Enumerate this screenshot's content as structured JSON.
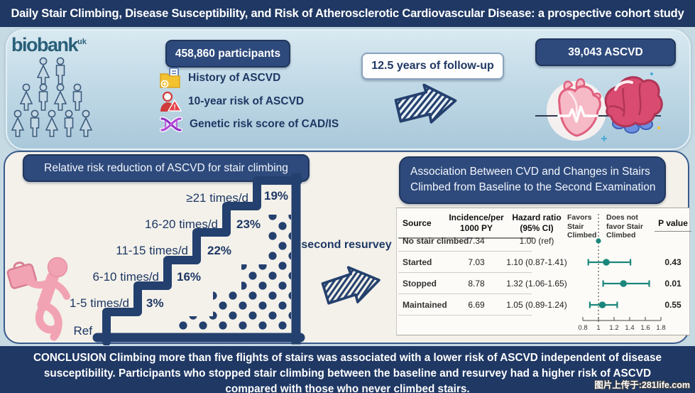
{
  "page_title": "Daily Stair Climbing, Disease Susceptibility, and Risk of Atherosclerotic Cardiovascular Disease: a prospective cohort study",
  "colors": {
    "navy": "#1F3864",
    "badge_navy": "#2E4A7C",
    "stair_navy": "#24406E",
    "panel_cream": "#F3F1EA",
    "teal": "#1B867B",
    "pink": "#F2A6B4",
    "heart_pink": "#F6B9C6",
    "brain_red": "#D94B70",
    "accent_blue": "#6C8FE0",
    "folder_yellow": "#F2C231",
    "dna_purple": "#9233C4",
    "alert_red": "#D9414B"
  },
  "top": {
    "logo_text": "biobank",
    "logo_sup": "uk",
    "participants_badge": "458,860 participants",
    "risk_items": [
      "History of ASCVD",
      "10-year risk of ASCVD",
      "Genetic risk score of CAD/IS"
    ],
    "followup_badge": "12.5 years of follow-up",
    "outcome_badge": "39,043 ASCVD"
  },
  "left_panel": {
    "header": "Relative risk reduction of ASCVD for stair climbing"
  },
  "resurvey_label": "second resurvey",
  "right_panel": {
    "header": "Association Between CVD and Changes in Stairs Climbed from Baseline to the Second Examination"
  },
  "chart_data": [
    {
      "type": "bar",
      "title": "Relative risk reduction of ASCVD for stair climbing",
      "categories": [
        "Ref",
        "1-5 times/d",
        "6-10 times/d",
        "11-15 times/d",
        "16-20 times/d",
        "≥21 times/d"
      ],
      "values": [
        0,
        3,
        16,
        22,
        23,
        19
      ],
      "value_labels": [
        "",
        "3%",
        "16%",
        "22%",
        "23%",
        "19%"
      ],
      "unit": "percent relative risk reduction vs Ref"
    },
    {
      "type": "table",
      "title": "Association Between CVD and Changes in Stairs Climbed from Baseline to the Second Examination",
      "columns_display": {
        "source": "Source",
        "incidence": [
          "Incidence/per",
          "1000 PY"
        ],
        "hazard": [
          "Hazard ratio",
          "(95% CI)"
        ],
        "pvalue": "P value",
        "favors": [
          "Favors",
          "Stair",
          "Climbed"
        ],
        "not_favors": [
          "Does not",
          "favor Stair",
          "Climbed"
        ]
      },
      "rows": [
        {
          "source": "No stair climbed",
          "incidence": "7.34",
          "hr_text": "1.00 (ref)",
          "hr": 1.0,
          "lo": null,
          "hi": null,
          "p": ""
        },
        {
          "source": "Started",
          "incidence": "7.03",
          "hr_text": "1.10 (0.87-1.41)",
          "hr": 1.1,
          "lo": 0.87,
          "hi": 1.41,
          "p": "0.43"
        },
        {
          "source": "Stopped",
          "incidence": "8.78",
          "hr_text": "1.32 (1.06-1.65)",
          "hr": 1.32,
          "lo": 1.06,
          "hi": 1.65,
          "p": "0.01"
        },
        {
          "source": "Maintained",
          "incidence": "6.69",
          "hr_text": "1.05 (0.89-1.24)",
          "hr": 1.05,
          "lo": 0.89,
          "hi": 1.24,
          "p": "0.55"
        }
      ],
      "forest": {
        "xlim": [
          0.8,
          1.8
        ],
        "ticks": [
          "0.8",
          "1",
          "1.2",
          "1.4",
          "1.6",
          "1.8"
        ],
        "ref_line": 1
      }
    }
  ],
  "conclusion": "CONCLUSION Climbing more than five flights of stairs was associated with a lower risk of ASCVD  independent of disease susceptibility. Participants who stopped stair climbing between the baseline and resurvey had a higher risk of ASCVD compared with those who never climbed stairs.",
  "watermark": "图片上传于:281life.com"
}
